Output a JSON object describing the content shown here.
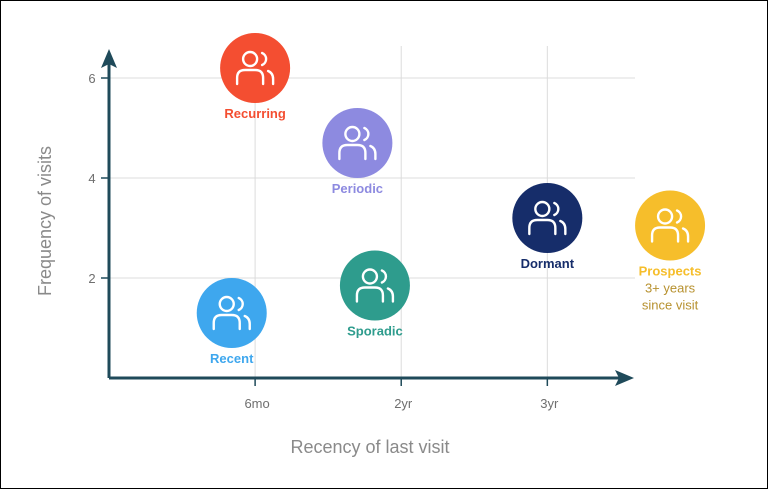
{
  "chart_data": {
    "type": "scatter",
    "title": "",
    "xlabel": "Recency of last visit",
    "ylabel": "Frequency of visits",
    "x_ticks": [
      {
        "value": 1,
        "label": "6mo"
      },
      {
        "value": 2,
        "label": "2yr"
      },
      {
        "value": 3,
        "label": "3yr"
      }
    ],
    "y_ticks": [
      {
        "value": 2,
        "label": "2"
      },
      {
        "value": 4,
        "label": "4"
      },
      {
        "value": 6,
        "label": "6"
      }
    ],
    "xlim": [
      0,
      3.6
    ],
    "ylim": [
      0,
      6.6
    ],
    "grid": true,
    "series": [
      {
        "name": "Recurring",
        "x": 1.0,
        "y": 6.2,
        "color": "#f44e31",
        "icon": "users-icon",
        "lines": []
      },
      {
        "name": "Periodic",
        "x": 1.7,
        "y": 4.7,
        "color": "#8d8ae0",
        "icon": "users-icon",
        "lines": []
      },
      {
        "name": "Dormant",
        "x": 3.0,
        "y": 3.2,
        "color": "#162d6a",
        "icon": "users-icon",
        "lines": []
      },
      {
        "name": "Prospects",
        "x": 3.84,
        "y": 3.05,
        "color": "#f6be2b",
        "icon": "users-icon",
        "lines": [
          "3+ years",
          "since visit"
        ]
      },
      {
        "name": "Sporadic",
        "x": 1.82,
        "y": 1.85,
        "color": "#2e9c8d",
        "icon": "users-icon",
        "lines": []
      },
      {
        "name": "Recent",
        "x": 0.84,
        "y": 1.3,
        "color": "#3ea7ee",
        "icon": "users-icon",
        "lines": []
      }
    ]
  },
  "colors": {
    "axis": "#1f4a5a",
    "grid": "#dcdcdc",
    "tick_text": "#6f6f6f",
    "axis_title": "#8a8a8a",
    "prospects_subtext": "#b7912f"
  }
}
